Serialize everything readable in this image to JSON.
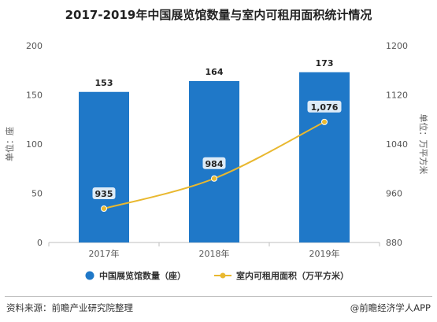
{
  "chart_data": {
    "type": "bar",
    "title": "2017-2019年中国展览馆数量与室内可租用面积统计情况",
    "categories": [
      "2017年",
      "2018年",
      "2019年"
    ],
    "series": [
      {
        "name": "中国展览馆数量（座）",
        "type": "bar",
        "axis": "left",
        "values": [
          153,
          164,
          173
        ],
        "labels": [
          "153",
          "164",
          "173"
        ],
        "color": "#1f78c8"
      },
      {
        "name": "室内可租用面积（万平方米）",
        "type": "line",
        "axis": "right",
        "values": [
          935,
          984,
          1076
        ],
        "labels": [
          "935",
          "984",
          "1,076"
        ],
        "color": "#e9b82f"
      }
    ],
    "y_left": {
      "label": "单位：座",
      "min": 0,
      "max": 200,
      "ticks": [
        0,
        50,
        100,
        150,
        200
      ]
    },
    "y_right": {
      "label": "单位：万平方米",
      "min": 880,
      "max": 1200,
      "ticks": [
        880,
        960,
        1040,
        1120,
        1200
      ]
    },
    "grid": false,
    "legend": "bottom"
  },
  "footer": {
    "source": "资料来源：前瞻产业研究院整理",
    "brand": "@前瞻经济学人APP"
  }
}
